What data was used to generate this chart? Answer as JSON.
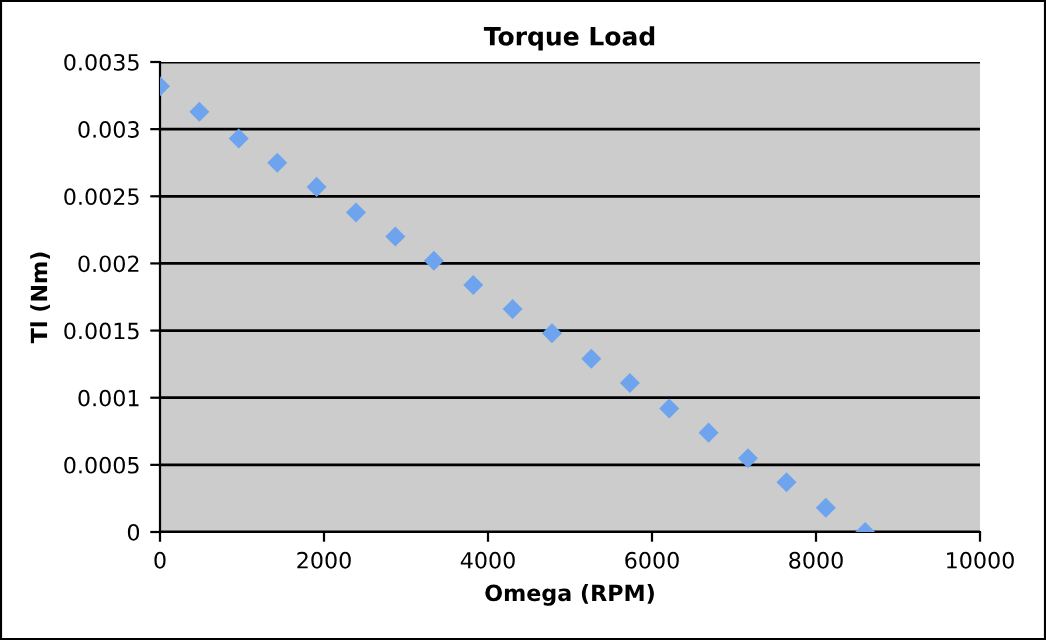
{
  "chart_data": {
    "type": "scatter",
    "title": "Torque Load",
    "xlabel": "Omega (RPM)",
    "ylabel": "Tl (Nm)",
    "x": [
      0,
      480,
      960,
      1430,
      1910,
      2390,
      2870,
      3340,
      3820,
      4300,
      4780,
      5260,
      5730,
      6210,
      6690,
      7170,
      7640,
      8120,
      8600
    ],
    "series": [
      {
        "color": "#6ea4ee",
        "values": [
          0.00332,
          0.00313,
          0.00293,
          0.00275,
          0.00257,
          0.00238,
          0.0022,
          0.00202,
          0.00184,
          0.00166,
          0.00148,
          0.00129,
          0.00111,
          0.00092,
          0.00074,
          0.00055,
          0.00037,
          0.00018,
          0
        ]
      }
    ],
    "xlim": [
      0,
      10000
    ],
    "xticks": [
      0,
      2000,
      4000,
      6000,
      8000,
      10000
    ],
    "ylim": [
      0,
      0.0035
    ],
    "yticks": [
      0,
      0.0005,
      0.001,
      0.0015,
      0.002,
      0.0025,
      0.003,
      0.0035
    ],
    "grid": "y",
    "marker": "diamond",
    "legend": false
  }
}
